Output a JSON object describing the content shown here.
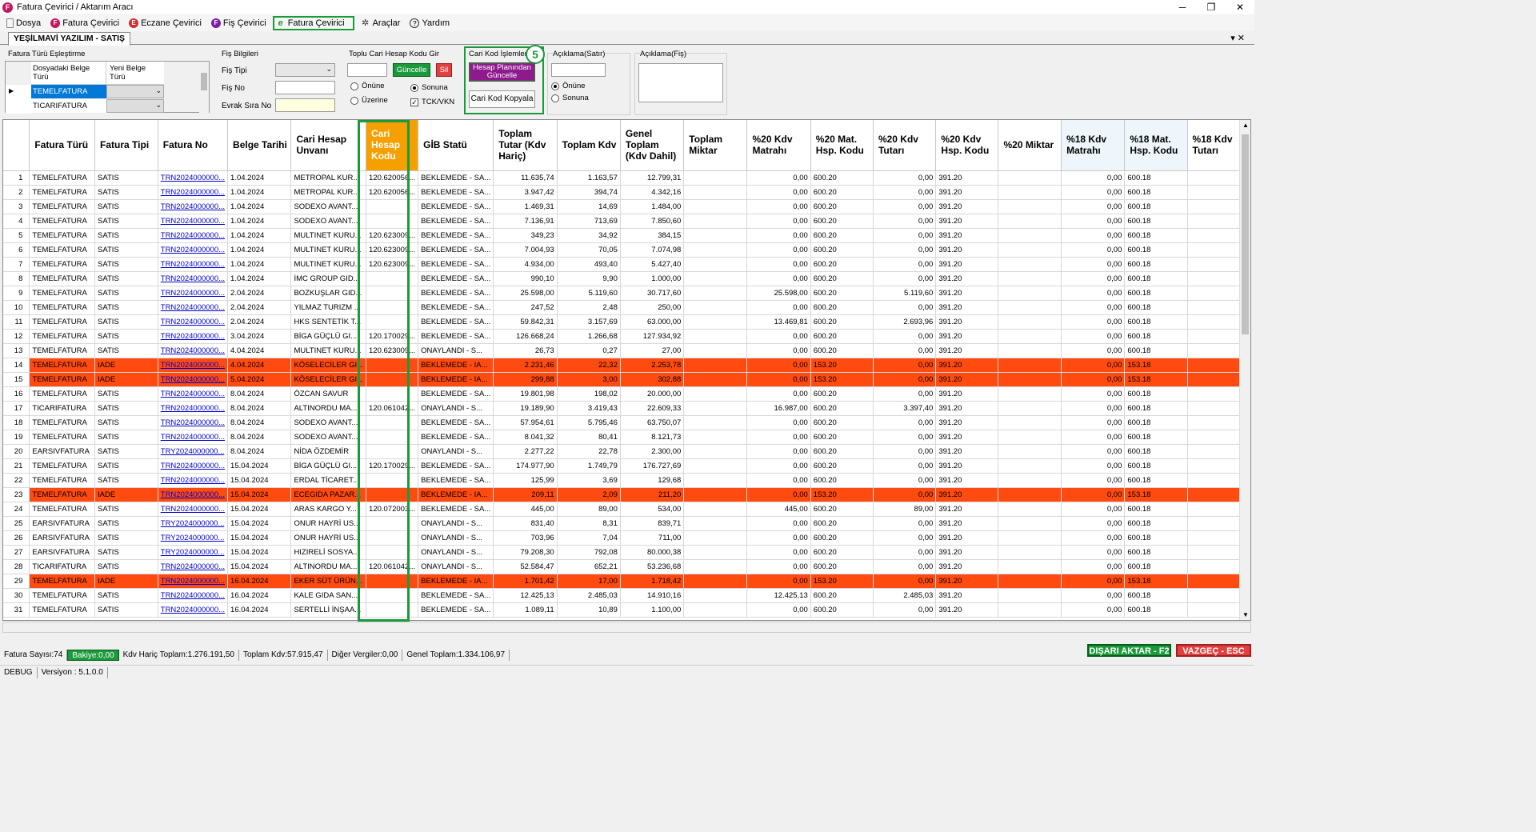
{
  "window": {
    "title": "Fatura Çevirici / Aktarım Aracı",
    "icon_letter": "F"
  },
  "menu": [
    {
      "label": "Dosya",
      "icon": "document-icon",
      "color": "#888888",
      "letter": ""
    },
    {
      "label": "Fatura Çevirici",
      "icon": "f-icon",
      "color": "#c2185b",
      "letter": "F"
    },
    {
      "label": "Eczane Çevirici",
      "icon": "e-icon",
      "color": "#d32f2f",
      "letter": "E"
    },
    {
      "label": "Fiş Çevirici",
      "icon": "f-icon",
      "color": "#7b1fa2",
      "letter": "F"
    },
    {
      "label": "Fatura Çevirici",
      "icon": "e-invoice-icon",
      "color": "#1a9a3a",
      "letter": "e"
    },
    {
      "label": "Araçlar",
      "icon": "tools-icon",
      "color": "#444444",
      "letter": ""
    },
    {
      "label": "Yardım",
      "icon": "help-icon",
      "color": "#444444",
      "letter": "?"
    }
  ],
  "tab": {
    "label": "YEŞİLMAVİ YAZILIM - SATIŞ"
  },
  "fatura_turu": {
    "title": "Fatura Türü Eşleştirme",
    "col1": "Dosyadaki Belge Türü",
    "col2": "Yeni Belge Türü",
    "rows": [
      "TEMELFATURA",
      "TICARIFATURA"
    ]
  },
  "fis": {
    "title": "Fiş Bilgileri",
    "tipi": "Fiş Tipi",
    "no": "Fiş No",
    "evrak": "Evrak Sıra No"
  },
  "toplu": {
    "title": "Toplu Cari Hesap Kodu Gir",
    "guncelle": "Güncelle",
    "sil": "Sil",
    "onune": "Önüne",
    "sonuna": "Sonuna",
    "uzerine": "Üzerine",
    "tck": "TCK/VKN"
  },
  "cari_kod": {
    "title": "Cari Kod İşlemleri",
    "hesap_btn": "Hesap Planından Güncelle",
    "kopyala_btn": "Cari Kod Kopyala",
    "badge": "5"
  },
  "aciklama_satir": {
    "title": "Açıklama(Satır)",
    "onune": "Önüne",
    "sonuna": "Sonuna"
  },
  "aciklama_fis": {
    "title": "Açıklama(Fiş)"
  },
  "columns": [
    "Fatura Türü",
    "Fatura Tipi",
    "Fatura No",
    "Belge Tarihi",
    "Cari Hesap Unvanı",
    "Cari Hesap Kodu",
    "GİB Statü",
    "Toplam Tutar (Kdv Hariç)",
    "Toplam Kdv",
    "Genel Toplam (Kdv Dahil)",
    "Toplam Miktar",
    "%20 Kdv Matrahı",
    "%20 Mat. Hsp. Kodu",
    "%20 Kdv Tutarı",
    "%20 Kdv Hsp. Kodu",
    "%20 Miktar",
    "%18 Kdv Matrahı",
    "%18 Mat. Hsp. Kodu",
    "%18 Kdv Tutarı"
  ],
  "rows": [
    [
      "1",
      "TEMELFATURA",
      "SATIS",
      "TRN2024000000...",
      "1.04.2024",
      "METROPAL KUR...",
      "120.620056...",
      "BEKLEMEDE - SA...",
      "11.635,74",
      "1.163,57",
      "12.799,31",
      "",
      "0,00",
      "600.20",
      "0,00",
      "391.20",
      "",
      "0,00",
      "600.18",
      ""
    ],
    [
      "2",
      "TEMELFATURA",
      "SATIS",
      "TRN2024000000...",
      "1.04.2024",
      "METROPAL KUR...",
      "120.620056...",
      "BEKLEMEDE - SA...",
      "3.947,42",
      "394,74",
      "4.342,16",
      "",
      "0,00",
      "600.20",
      "0,00",
      "391.20",
      "",
      "0,00",
      "600.18",
      ""
    ],
    [
      "3",
      "TEMELFATURA",
      "SATIS",
      "TRN2024000000...",
      "1.04.2024",
      "SODEXO AVANT...",
      "",
      "BEKLEMEDE - SA...",
      "1.469,31",
      "14,69",
      "1.484,00",
      "",
      "0,00",
      "600.20",
      "0,00",
      "391.20",
      "",
      "0,00",
      "600.18",
      ""
    ],
    [
      "4",
      "TEMELFATURA",
      "SATIS",
      "TRN2024000000...",
      "1.04.2024",
      "SODEXO AVANT...",
      "",
      "BEKLEMEDE - SA...",
      "7.136,91",
      "713,69",
      "7.850,60",
      "",
      "0,00",
      "600.20",
      "0,00",
      "391.20",
      "",
      "0,00",
      "600.18",
      ""
    ],
    [
      "5",
      "TEMELFATURA",
      "SATIS",
      "TRN2024000000...",
      "1.04.2024",
      "MULTINET KURU...",
      "120.623009...",
      "BEKLEMEDE - SA...",
      "349,23",
      "34,92",
      "384,15",
      "",
      "0,00",
      "600.20",
      "0,00",
      "391.20",
      "",
      "0,00",
      "600.18",
      ""
    ],
    [
      "6",
      "TEMELFATURA",
      "SATIS",
      "TRN2024000000...",
      "1.04.2024",
      "MULTINET KURU...",
      "120.623009...",
      "BEKLEMEDE - SA...",
      "7.004,93",
      "70,05",
      "7.074,98",
      "",
      "0,00",
      "600.20",
      "0,00",
      "391.20",
      "",
      "0,00",
      "600.18",
      ""
    ],
    [
      "7",
      "TEMELFATURA",
      "SATIS",
      "TRN2024000000...",
      "1.04.2024",
      "MULTINET KURU...",
      "120.623009...",
      "BEKLEMEDE - SA...",
      "4.934,00",
      "493,40",
      "5.427,40",
      "",
      "0,00",
      "600.20",
      "0,00",
      "391.20",
      "",
      "0,00",
      "600.18",
      ""
    ],
    [
      "8",
      "TEMELFATURA",
      "SATIS",
      "TRN2024000000...",
      "1.04.2024",
      "İMC GROUP GID...",
      "",
      "BEKLEMEDE - SA...",
      "990,10",
      "9,90",
      "1.000,00",
      "",
      "0,00",
      "600.20",
      "0,00",
      "391.20",
      "",
      "0,00",
      "600.18",
      ""
    ],
    [
      "9",
      "TEMELFATURA",
      "SATIS",
      "TRN2024000000...",
      "2.04.2024",
      "BOZKUŞLAR GID...",
      "",
      "BEKLEMEDE - SA...",
      "25.598,00",
      "5.119,60",
      "30.717,60",
      "",
      "25.598,00",
      "600.20",
      "5.119,60",
      "391.20",
      "",
      "0,00",
      "600.18",
      ""
    ],
    [
      "10",
      "TEMELFATURA",
      "SATIS",
      "TRN2024000000...",
      "2.04.2024",
      "YILMAZ TURIZM ...",
      "",
      "BEKLEMEDE - SA...",
      "247,52",
      "2,48",
      "250,00",
      "",
      "0,00",
      "600.20",
      "0,00",
      "391.20",
      "",
      "0,00",
      "600.18",
      ""
    ],
    [
      "11",
      "TEMELFATURA",
      "SATIS",
      "TRN2024000000...",
      "2.04.2024",
      "HKS SENTETİK T...",
      "",
      "BEKLEMEDE - SA...",
      "59.842,31",
      "3.157,69",
      "63.000,00",
      "",
      "13.469,81",
      "600.20",
      "2.693,96",
      "391.20",
      "",
      "0,00",
      "600.18",
      ""
    ],
    [
      "12",
      "TEMELFATURA",
      "SATIS",
      "TRN2024000000...",
      "3.04.2024",
      "BİGA GÜÇLÜ GI...",
      "120.170029...",
      "BEKLEMEDE - SA...",
      "126.668,24",
      "1.266,68",
      "127.934,92",
      "",
      "0,00",
      "600.20",
      "0,00",
      "391.20",
      "",
      "0,00",
      "600.18",
      ""
    ],
    [
      "13",
      "TEMELFATURA",
      "SATIS",
      "TRN2024000000...",
      "4.04.2024",
      "MULTINET KURU...",
      "120.623009...",
      "ONAYLANDI - S...",
      "26,73",
      "0,27",
      "27,00",
      "",
      "0,00",
      "600.20",
      "0,00",
      "391.20",
      "",
      "0,00",
      "600.18",
      ""
    ],
    [
      "14",
      "TEMELFATURA",
      "IADE",
      "TRN2024000000...",
      "4.04.2024",
      "KÖSELECİLER GI...",
      "",
      "BEKLEMEDE - IA...",
      "2.231,46",
      "22,32",
      "2.253,78",
      "",
      "0,00",
      "153.20",
      "0,00",
      "391.20",
      "",
      "0,00",
      "153.18",
      ""
    ],
    [
      "15",
      "TEMELFATURA",
      "IADE",
      "TRN2024000000...",
      "5.04.2024",
      "KÖSELECİLER GI...",
      "",
      "BEKLEMEDE - IA...",
      "299,88",
      "3,00",
      "302,88",
      "",
      "0,00",
      "153.20",
      "0,00",
      "391.20",
      "",
      "0,00",
      "153.18",
      ""
    ],
    [
      "16",
      "TEMELFATURA",
      "SATIS",
      "TRN2024000000...",
      "8.04.2024",
      "ÖZCAN SAVUR",
      "",
      "BEKLEMEDE - SA...",
      "19.801,98",
      "198,02",
      "20.000,00",
      "",
      "0,00",
      "600.20",
      "0,00",
      "391.20",
      "",
      "0,00",
      "600.18",
      ""
    ],
    [
      "17",
      "TICARIFATURA",
      "SATIS",
      "TRN2024000000...",
      "8.04.2024",
      "ALTINORDU MA...",
      "120.061042...",
      "ONAYLANDI - S...",
      "19.189,90",
      "3.419,43",
      "22.609,33",
      "",
      "16.987,00",
      "600.20",
      "3.397,40",
      "391.20",
      "",
      "0,00",
      "600.18",
      ""
    ],
    [
      "18",
      "TEMELFATURA",
      "SATIS",
      "TRN2024000000...",
      "8.04.2024",
      "SODEXO AVANT...",
      "",
      "BEKLEMEDE - SA...",
      "57.954,61",
      "5.795,46",
      "63.750,07",
      "",
      "0,00",
      "600.20",
      "0,00",
      "391.20",
      "",
      "0,00",
      "600.18",
      ""
    ],
    [
      "19",
      "TEMELFATURA",
      "SATIS",
      "TRN2024000000...",
      "8.04.2024",
      "SODEXO AVANT...",
      "",
      "BEKLEMEDE - SA...",
      "8.041,32",
      "80,41",
      "8.121,73",
      "",
      "0,00",
      "600.20",
      "0,00",
      "391.20",
      "",
      "0,00",
      "600.18",
      ""
    ],
    [
      "20",
      "EARSIVFATURA",
      "SATIS",
      "TRY2024000000...",
      "8.04.2024",
      "NİDA ÖZDEMİR",
      "",
      "ONAYLANDI - S...",
      "2.277,22",
      "22,78",
      "2.300,00",
      "",
      "0,00",
      "600.20",
      "0,00",
      "391.20",
      "",
      "0,00",
      "600.18",
      ""
    ],
    [
      "21",
      "TEMELFATURA",
      "SATIS",
      "TRN2024000000...",
      "15.04.2024",
      "BİGA GÜÇLÜ GI...",
      "120.170029...",
      "BEKLEMEDE - SA...",
      "174.977,90",
      "1.749,79",
      "176.727,69",
      "",
      "0,00",
      "600.20",
      "0,00",
      "391.20",
      "",
      "0,00",
      "600.18",
      ""
    ],
    [
      "22",
      "TEMELFATURA",
      "SATIS",
      "TRN2024000000...",
      "15.04.2024",
      "ERDAL TİCARET...",
      "",
      "BEKLEMEDE - SA...",
      "125,99",
      "3,69",
      "129,68",
      "",
      "0,00",
      "600.20",
      "0,00",
      "391.20",
      "",
      "0,00",
      "600.18",
      ""
    ],
    [
      "23",
      "TEMELFATURA",
      "IADE",
      "TRN2024000000...",
      "15.04.2024",
      "ECEGIDA PAZAR...",
      "",
      "BEKLEMEDE - IA...",
      "209,11",
      "2,09",
      "211,20",
      "",
      "0,00",
      "153.20",
      "0,00",
      "391.20",
      "",
      "0,00",
      "153.18",
      ""
    ],
    [
      "24",
      "TEMELFATURA",
      "SATIS",
      "TRN2024000000...",
      "15.04.2024",
      "ARAS KARGO Y...",
      "120.072003...",
      "BEKLEMEDE - SA...",
      "445,00",
      "89,00",
      "534,00",
      "",
      "445,00",
      "600.20",
      "89,00",
      "391.20",
      "",
      "0,00",
      "600.18",
      ""
    ],
    [
      "25",
      "EARSIVFATURA",
      "SATIS",
      "TRY2024000000...",
      "15.04.2024",
      "ONUR HAYRİ US...",
      "",
      "ONAYLANDI - S...",
      "831,40",
      "8,31",
      "839,71",
      "",
      "0,00",
      "600.20",
      "0,00",
      "391.20",
      "",
      "0,00",
      "600.18",
      ""
    ],
    [
      "26",
      "EARSIVFATURA",
      "SATIS",
      "TRY2024000000...",
      "15.04.2024",
      "ONUR HAYRİ US...",
      "",
      "ONAYLANDI - S...",
      "703,96",
      "7,04",
      "711,00",
      "",
      "0,00",
      "600.20",
      "0,00",
      "391.20",
      "",
      "0,00",
      "600.18",
      ""
    ],
    [
      "27",
      "EARSIVFATURA",
      "SATIS",
      "TRY2024000000...",
      "15.04.2024",
      "HIZIRELİ SOSYA...",
      "",
      "ONAYLANDI - S...",
      "79.208,30",
      "792,08",
      "80.000,38",
      "",
      "0,00",
      "600.20",
      "0,00",
      "391.20",
      "",
      "0,00",
      "600.18",
      ""
    ],
    [
      "28",
      "TICARIFATURA",
      "SATIS",
      "TRN2024000000...",
      "15.04.2024",
      "ALTINORDU MA...",
      "120.061042...",
      "ONAYLANDI - S...",
      "52.584,47",
      "652,21",
      "53.236,68",
      "",
      "0,00",
      "600.20",
      "0,00",
      "391.20",
      "",
      "0,00",
      "600.18",
      ""
    ],
    [
      "29",
      "TEMELFATURA",
      "IADE",
      "TRN2024000000...",
      "16.04.2024",
      "EKER SÜT ÜRÜN...",
      "",
      "BEKLEMEDE - IA...",
      "1.701,42",
      "17,00",
      "1.718,42",
      "",
      "0,00",
      "153.20",
      "0,00",
      "391.20",
      "",
      "0,00",
      "153.18",
      ""
    ],
    [
      "30",
      "TEMELFATURA",
      "SATIS",
      "TRN2024000000...",
      "16.04.2024",
      "KALE GIDA SAN...",
      "",
      "BEKLEMEDE - SA...",
      "12.425,13",
      "2.485,03",
      "14.910,16",
      "",
      "12.425,13",
      "600.20",
      "2.485,03",
      "391.20",
      "",
      "0,00",
      "600.18",
      ""
    ],
    [
      "31",
      "TEMELFATURA",
      "SATIS",
      "TRN2024000000...",
      "16.04.2024",
      "SERTELLİ İNŞAA...",
      "",
      "BEKLEMEDE - SA...",
      "1.089,11",
      "10,89",
      "1.100,00",
      "",
      "0,00",
      "600.20",
      "0,00",
      "391.20",
      "",
      "0,00",
      "600.18",
      ""
    ]
  ],
  "status": {
    "fatura_sayisi": "Fatura Sayısı:74",
    "bakiye": "Bakiye:0,00",
    "kdv_haric": "Kdv Hariç Toplam:1.276.191,50",
    "toplam_kdv": "Toplam Kdv:57.915,47",
    "diger": "Diğer Vergiler:0,00",
    "genel": "Genel Toplam:1.334.106,97"
  },
  "buttons": {
    "disari": "DIŞARI AKTAR - F2",
    "vazgec": "VAZGEÇ - ESC"
  },
  "bottom": {
    "debug": "DEBUG",
    "version": "Versiyon : 5.1.0.0"
  },
  "colors": {
    "iade_row": "#ff4a10",
    "highlight_header": "#f5a000",
    "green_border": "#1a9a3a",
    "purple_btn": "#8e1a8e",
    "red_btn": "#e04040"
  }
}
